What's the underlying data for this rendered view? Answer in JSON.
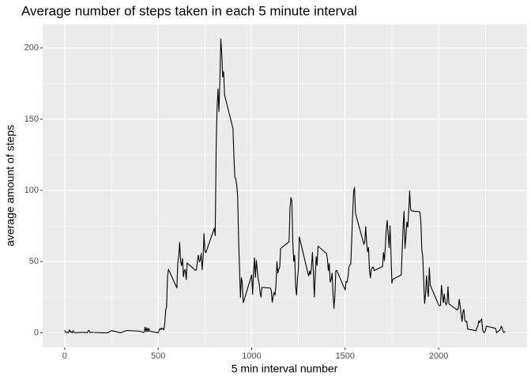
{
  "chart_data": {
    "type": "line",
    "title": "Average number of steps taken in each 5 minute interval",
    "x_label": "5 min interval number",
    "y_label": "average amount of steps",
    "color": "#000000",
    "grid": true,
    "xlim": [
      -117.75,
      2472.75
    ],
    "ylim": [
      -10.31,
      216.48
    ],
    "xticks": [
      0,
      500,
      1000,
      1500,
      2000
    ],
    "yticks": [
      0,
      50,
      100,
      150,
      200
    ],
    "xminor_ticks": [
      250,
      750,
      1250,
      1750,
      2250
    ],
    "yminor_ticks": [
      25,
      75,
      125,
      175
    ],
    "x": [
      0,
      5,
      10,
      15,
      20,
      25,
      30,
      35,
      40,
      45,
      50,
      55,
      100,
      105,
      110,
      115,
      120,
      125,
      130,
      135,
      140,
      145,
      150,
      200,
      230,
      250,
      300,
      330,
      400,
      420,
      425,
      430,
      435,
      440,
      445,
      450,
      455,
      500,
      505,
      510,
      515,
      520,
      525,
      530,
      535,
      540,
      545,
      550,
      555,
      600,
      605,
      610,
      615,
      620,
      625,
      630,
      635,
      640,
      645,
      650,
      655,
      700,
      705,
      710,
      715,
      720,
      725,
      730,
      735,
      740,
      745,
      750,
      755,
      800,
      805,
      810,
      815,
      820,
      825,
      830,
      835,
      840,
      845,
      850,
      855,
      900,
      905,
      910,
      915,
      920,
      925,
      930,
      935,
      940,
      945,
      950,
      955,
      1000,
      1005,
      1010,
      1015,
      1020,
      1025,
      1030,
      1035,
      1040,
      1045,
      1050,
      1055,
      1100,
      1105,
      1110,
      1115,
      1120,
      1125,
      1130,
      1135,
      1140,
      1145,
      1150,
      1155,
      1200,
      1205,
      1210,
      1215,
      1220,
      1225,
      1230,
      1235,
      1240,
      1245,
      1250,
      1255,
      1300,
      1305,
      1310,
      1315,
      1320,
      1325,
      1330,
      1335,
      1340,
      1345,
      1350,
      1355,
      1400,
      1405,
      1410,
      1415,
      1420,
      1425,
      1430,
      1435,
      1440,
      1445,
      1450,
      1455,
      1500,
      1505,
      1510,
      1515,
      1520,
      1525,
      1530,
      1535,
      1540,
      1545,
      1550,
      1555,
      1600,
      1605,
      1610,
      1615,
      1620,
      1625,
      1630,
      1635,
      1640,
      1645,
      1650,
      1655,
      1700,
      1705,
      1710,
      1715,
      1720,
      1725,
      1730,
      1735,
      1740,
      1745,
      1750,
      1755,
      1800,
      1805,
      1810,
      1815,
      1820,
      1825,
      1830,
      1835,
      1840,
      1845,
      1850,
      1855,
      1900,
      1905,
      1910,
      1915,
      1920,
      1925,
      1930,
      1935,
      1940,
      1945,
      1950,
      1955,
      2000,
      2005,
      2010,
      2015,
      2020,
      2025,
      2030,
      2035,
      2040,
      2045,
      2050,
      2055,
      2100,
      2105,
      2110,
      2115,
      2120,
      2125,
      2130,
      2135,
      2140,
      2145,
      2150,
      2155,
      2200,
      2205,
      2210,
      2215,
      2220,
      2225,
      2230,
      2235,
      2240,
      2245,
      2250,
      2255,
      2300,
      2305,
      2310,
      2315,
      2320,
      2325,
      2330,
      2335,
      2340,
      2345,
      2350,
      2355
    ],
    "values": [
      1.7,
      0.3,
      0.1,
      0.2,
      0.1,
      2.1,
      0.5,
      0.9,
      0,
      1.5,
      0.3,
      0,
      0.4,
      0,
      0.2,
      0.3,
      0,
      1.1,
      1.8,
      0.2,
      0.2,
      0.4,
      0.3,
      0,
      0,
      1.5,
      0,
      1.6,
      1.2,
      0.3,
      0.4,
      4.1,
      0.7,
      3.5,
      0.8,
      3.1,
      1.1,
      0,
      1.6,
      3.0,
      2.2,
      3.3,
      3.0,
      2.1,
      6.1,
      16.0,
      18.3,
      39.5,
      44.5,
      31.5,
      49.3,
      53.8,
      63.5,
      50.0,
      47.1,
      52.2,
      39.3,
      44.0,
      44.2,
      37.4,
      49.0,
      43.8,
      44.4,
      50.5,
      54.5,
      49.9,
      50.9,
      55.7,
      44.3,
      52.3,
      69.5,
      57.8,
      56.2,
      73.4,
      68.2,
      129.4,
      157.5,
      171.2,
      155.4,
      177.3,
      206.2,
      195.9,
      179.6,
      183.4,
      167.0,
      143.5,
      124.0,
      109.1,
      108.1,
      103.7,
      95.9,
      66.2,
      45.2,
      24.8,
      38.8,
      34.98,
      21.1,
      40.6,
      27.0,
      42.4,
      52.7,
      38.9,
      50.8,
      44.3,
      37.4,
      34.7,
      28.3,
      25.1,
      31.9,
      31.4,
      29.7,
      21.3,
      25.5,
      28.4,
      26.5,
      33.4,
      50.0,
      42.0,
      44.6,
      46.0,
      59.2,
      63.9,
      87.7,
      94.8,
      92.8,
      63.4,
      50.2,
      54.5,
      32.4,
      26.5,
      37.7,
      45.1,
      67.3,
      42.3,
      39.9,
      43.3,
      40.98,
      46.2,
      56.4,
      42.8,
      25.1,
      39.96,
      53.5,
      47.3,
      60.8,
      55.75,
      51.96,
      43.6,
      48.7,
      35.5,
      37.5,
      41.8,
      27.5,
      17.1,
      26.1,
      43.6,
      43.8,
      30.0,
      36.1,
      35.5,
      38.8,
      45.96,
      47.75,
      48.1,
      65.3,
      82.9,
      98.7,
      102.1,
      83.96,
      62.1,
      64.1,
      74.5,
      63.2,
      56.9,
      59.8,
      43.9,
      38.6,
      44.7,
      45.5,
      46.2,
      43.7,
      46.6,
      56.3,
      50.7,
      61.2,
      72.7,
      78.9,
      68.9,
      59.7,
      75.1,
      56.5,
      34.8,
      37.5,
      40.7,
      58.0,
      74.7,
      85.3,
      59.3,
      67.8,
      77.7,
      74.2,
      85.3,
      99.5,
      86.6,
      85.6,
      84.9,
      77.8,
      58.0,
      53.4,
      36.3,
      20.7,
      27.4,
      40.0,
      30.2,
      25.5,
      45.7,
      33.5,
      19.6,
      19.0,
      19.3,
      33.3,
      26.8,
      21.2,
      27.3,
      21.3,
      19.5,
      21.3,
      32.3,
      20.2,
      15.9,
      17.2,
      23.5,
      19.2,
      12.5,
      8.0,
      14.7,
      16.3,
      8.7,
      7.8,
      8.1,
      2.6,
      1.5,
      3.7,
      4.8,
      8.5,
      7.1,
      8.7,
      9.8,
      2.2,
      0.3,
      0.1,
      1.6,
      4.6,
      3.3,
      2.8,
      0,
      0.8,
      1.0,
      1.6,
      2.6,
      4.7,
      3.3,
      0.6,
      0.2,
      1.1
    ]
  }
}
